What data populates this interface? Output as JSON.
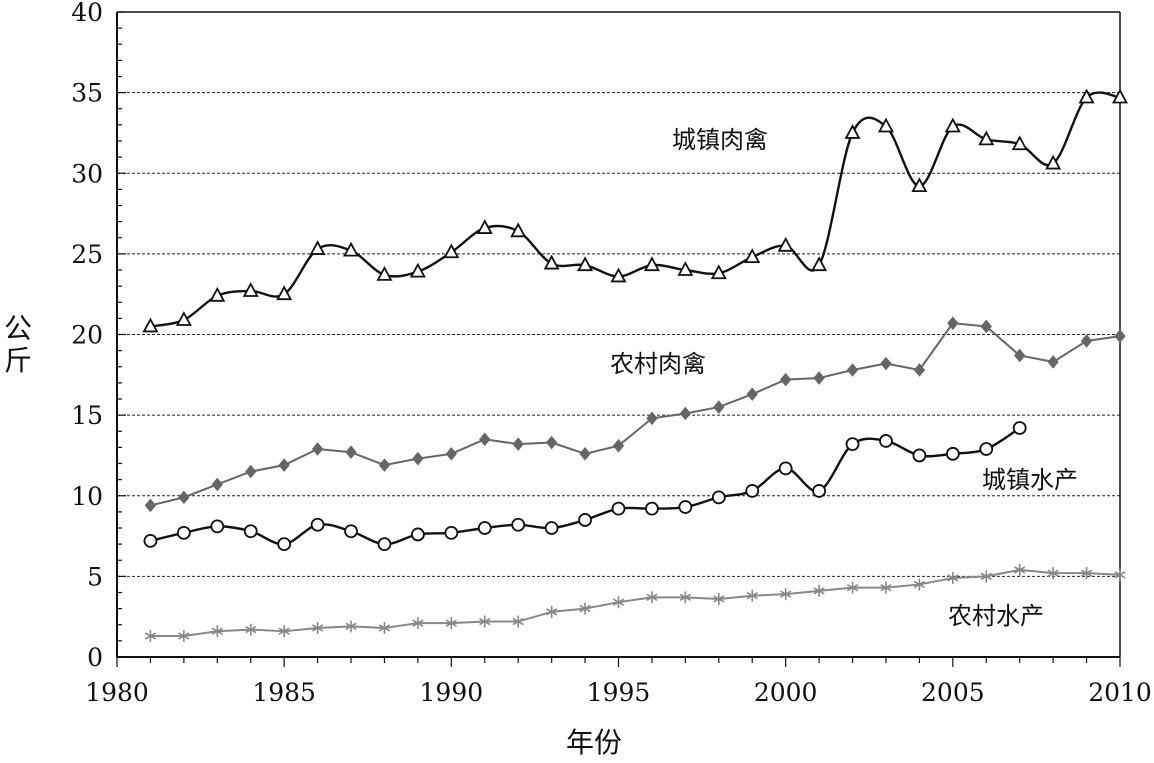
{
  "chart_data": {
    "type": "line",
    "xlabel": "年份",
    "ylabel": "公斤",
    "xlim": [
      1980,
      2010
    ],
    "ylim": [
      0,
      40
    ],
    "x_ticks": [
      "1980",
      "1985",
      "1990",
      "1995",
      "2000",
      "2005",
      "2010"
    ],
    "y_ticks": [
      "0",
      "5",
      "10",
      "15",
      "20",
      "25",
      "30",
      "35",
      "40"
    ],
    "grid": "horizontal dashed at 5, 10, 15, 20, 25, 30, 35",
    "series": [
      {
        "name": "城镇肉禽",
        "marker": "triangle",
        "color": "#111111",
        "x": [
          1981,
          1982,
          1983,
          1984,
          1985,
          1986,
          1987,
          1988,
          1989,
          1990,
          1991,
          1992,
          1993,
          1994,
          1995,
          1996,
          1997,
          1998,
          1999,
          2000,
          2001,
          2002,
          2003,
          2004,
          2005,
          2006,
          2007,
          2008,
          2009,
          2010
        ],
        "values": [
          20.5,
          20.9,
          22.4,
          22.7,
          22.5,
          25.3,
          25.2,
          23.7,
          23.9,
          25.1,
          26.6,
          26.4,
          24.4,
          24.3,
          23.6,
          24.3,
          24.0,
          23.8,
          24.8,
          25.5,
          24.3,
          32.5,
          32.9,
          29.2,
          32.9,
          32.1,
          31.8,
          30.6,
          34.7,
          34.7
        ]
      },
      {
        "name": "农村肉禽",
        "marker": "diamond",
        "color": "#666666",
        "x": [
          1981,
          1982,
          1983,
          1984,
          1985,
          1986,
          1987,
          1988,
          1989,
          1990,
          1991,
          1992,
          1993,
          1994,
          1995,
          1996,
          1997,
          1998,
          1999,
          2000,
          2001,
          2002,
          2003,
          2004,
          2005,
          2006,
          2007,
          2008,
          2009,
          2010
        ],
        "values": [
          9.4,
          9.9,
          10.7,
          11.5,
          11.9,
          12.9,
          12.7,
          11.9,
          12.3,
          12.6,
          13.5,
          13.2,
          13.3,
          12.6,
          13.1,
          14.8,
          15.1,
          15.5,
          16.3,
          17.2,
          17.3,
          17.8,
          18.2,
          17.8,
          20.7,
          20.5,
          18.7,
          18.3,
          19.6,
          19.9
        ]
      },
      {
        "name": "城镇水产",
        "marker": "circle",
        "color": "#111111",
        "x": [
          1981,
          1982,
          1983,
          1984,
          1985,
          1986,
          1987,
          1988,
          1989,
          1990,
          1991,
          1992,
          1993,
          1994,
          1995,
          1996,
          1997,
          1998,
          1999,
          2000,
          2001,
          2002,
          2003,
          2004,
          2005,
          2006,
          2007
        ],
        "values": [
          7.2,
          7.7,
          8.1,
          7.8,
          7.0,
          8.2,
          7.8,
          7.0,
          7.6,
          7.7,
          8.0,
          8.2,
          8.0,
          8.5,
          9.2,
          9.2,
          9.3,
          9.9,
          10.3,
          11.7,
          10.3,
          13.2,
          13.4,
          12.5,
          12.6,
          12.9,
          14.2
        ]
      },
      {
        "name": "农村水产",
        "marker": "asterisk",
        "color": "#888888",
        "x": [
          1981,
          1982,
          1983,
          1984,
          1985,
          1986,
          1987,
          1988,
          1989,
          1990,
          1991,
          1992,
          1993,
          1994,
          1995,
          1996,
          1997,
          1998,
          1999,
          2000,
          2001,
          2002,
          2003,
          2004,
          2005,
          2006,
          2007,
          2008,
          2009,
          2010
        ],
        "values": [
          1.3,
          1.3,
          1.6,
          1.7,
          1.6,
          1.8,
          1.9,
          1.8,
          2.1,
          2.1,
          2.2,
          2.2,
          2.8,
          3.0,
          3.4,
          3.7,
          3.7,
          3.6,
          3.8,
          3.9,
          4.1,
          4.3,
          4.3,
          4.5,
          4.9,
          5.0,
          5.4,
          5.2,
          5.2,
          5.1
        ]
      }
    ]
  }
}
